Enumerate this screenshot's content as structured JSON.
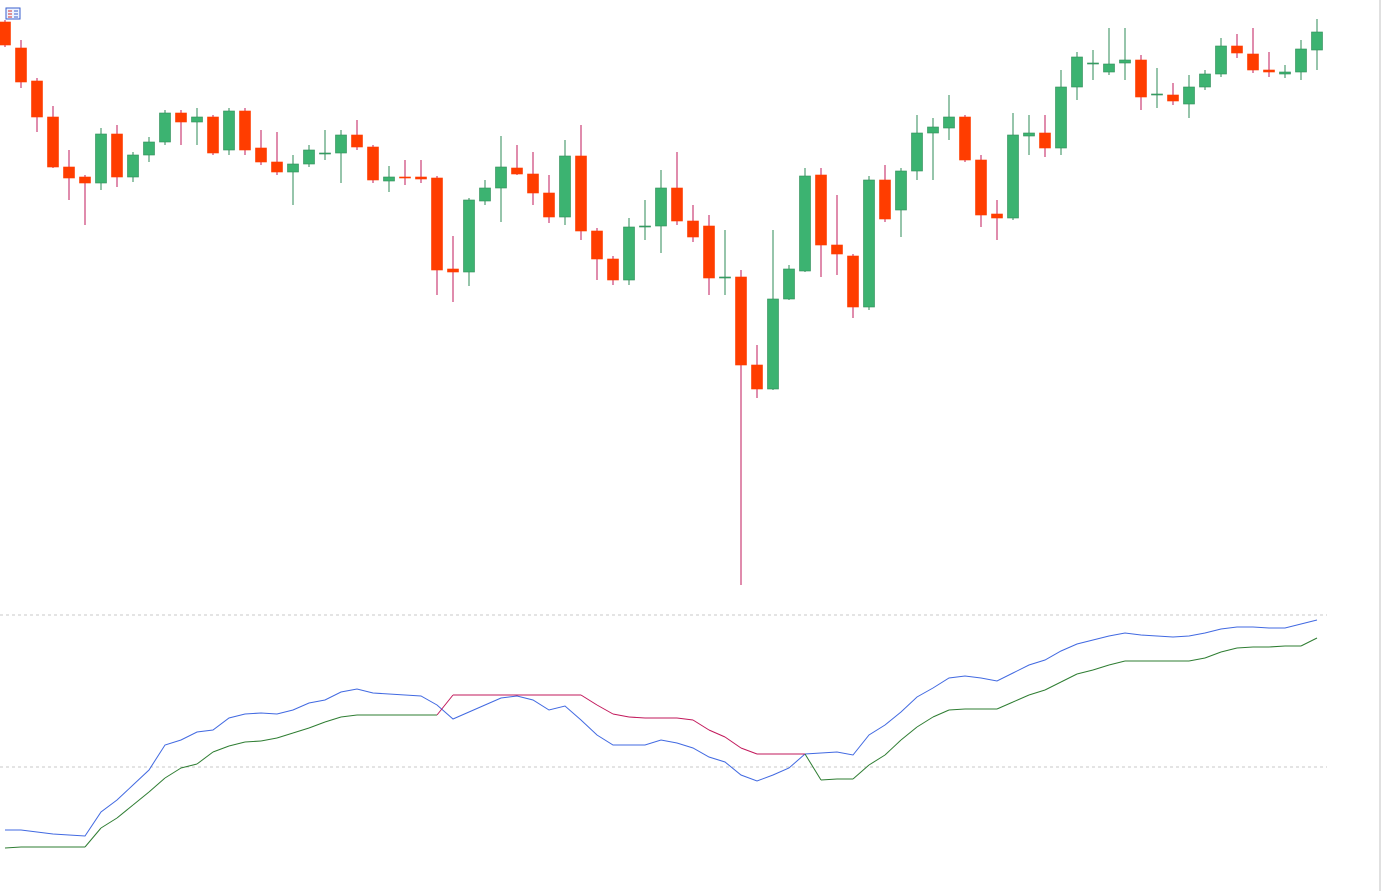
{
  "chart_data": [
    {
      "type": "candlestick",
      "ylim": [
        0,
        600
      ],
      "up_color": "#3cb371",
      "up_wick": "#2e8b57",
      "down_color": "#ff3d00",
      "down_wick": "#c2185b",
      "open": [
        578,
        552,
        519,
        483,
        433,
        423,
        417,
        466,
        423,
        445,
        458,
        487,
        478,
        483,
        450,
        489,
        452,
        438,
        428,
        436,
        446,
        447,
        465,
        453,
        419,
        423,
        423,
        422,
        331,
        328,
        399,
        412,
        432,
        426,
        407,
        383,
        444,
        369,
        341,
        320,
        373,
        374,
        412,
        379,
        374,
        322,
        323,
        235,
        211,
        301,
        329,
        425,
        355,
        344,
        293,
        420,
        390,
        429,
        467,
        472,
        483,
        440,
        386,
        382,
        464,
        467,
        452,
        513,
        536,
        528,
        537,
        540,
        505,
        505,
        496,
        513,
        526,
        554,
        546,
        530,
        526,
        528,
        550
      ],
      "high": [
        580,
        560,
        522,
        494,
        450,
        425,
        472,
        475,
        448,
        463,
        490,
        490,
        492,
        485,
        492,
        492,
        470,
        468,
        445,
        455,
        470,
        470,
        480,
        455,
        434,
        440,
        440,
        424,
        364,
        402,
        420,
        464,
        455,
        448,
        425,
        460,
        475,
        372,
        344,
        382,
        400,
        430,
        448,
        395,
        385,
        370,
        330,
        255,
        370,
        335,
        432,
        432,
        405,
        346,
        424,
        435,
        432,
        485,
        482,
        505,
        485,
        445,
        400,
        487,
        485,
        485,
        530,
        548,
        550,
        572,
        572,
        545,
        532,
        517,
        525,
        530,
        562,
        566,
        572,
        548,
        535,
        560,
        581
      ],
      "low": [
        553,
        512,
        468,
        432,
        400,
        375,
        410,
        413,
        418,
        438,
        455,
        455,
        455,
        445,
        445,
        445,
        435,
        425,
        395,
        433,
        440,
        417,
        450,
        417,
        408,
        415,
        417,
        305,
        298,
        314,
        395,
        378,
        425,
        395,
        377,
        375,
        360,
        320,
        315,
        315,
        360,
        347,
        375,
        358,
        305,
        305,
        15,
        202,
        210,
        300,
        328,
        323,
        325,
        282,
        290,
        378,
        363,
        420,
        420,
        460,
        438,
        373,
        360,
        380,
        445,
        443,
        445,
        500,
        520,
        525,
        520,
        490,
        492,
        495,
        482,
        510,
        523,
        542,
        527,
        523,
        522,
        520,
        530
      ],
      "close": [
        555,
        518,
        483,
        433,
        422,
        417,
        466,
        423,
        445,
        458,
        487,
        478,
        483,
        447,
        489,
        450,
        438,
        428,
        436,
        450,
        447,
        465,
        453,
        420,
        423,
        422,
        421,
        330,
        328,
        400,
        412,
        433,
        426,
        407,
        383,
        444,
        369,
        341,
        320,
        373,
        374,
        412,
        379,
        363,
        322,
        323,
        235,
        211,
        301,
        331,
        424,
        355,
        346,
        293,
        420,
        381,
        429,
        467,
        473,
        483,
        440,
        385,
        382,
        465,
        467,
        452,
        513,
        543,
        537,
        536,
        540,
        503,
        506,
        499,
        513,
        526,
        554,
        547,
        530,
        528,
        528,
        551,
        568
      ]
    },
    {
      "type": "line",
      "ylim": [
        0,
        290
      ],
      "hlines": [
        275,
        123
      ],
      "hline_color": "#c8c8c8",
      "series": [
        {
          "color": "#4169e1",
          "values": [
            60,
            60,
            58,
            56,
            55,
            54,
            78,
            90,
            105,
            120,
            145,
            150,
            158,
            160,
            172,
            176,
            177,
            176,
            180,
            187,
            190,
            198,
            201,
            197,
            196,
            195,
            194,
            185,
            171,
            178,
            185,
            192,
            194,
            190,
            180,
            184,
            170,
            155,
            145,
            145,
            145,
            150,
            147,
            142,
            133,
            128,
            115,
            109,
            115,
            122,
            136,
            137,
            138,
            135,
            155,
            165,
            178,
            193,
            202,
            212,
            214,
            212,
            209,
            217,
            225,
            230,
            239,
            246,
            250,
            254,
            257,
            255,
            254,
            253,
            254,
            257,
            261,
            263,
            263,
            262,
            262,
            266,
            270
          ]
        },
        {
          "color": "#2e7d32",
          "above_color": "#c2185b",
          "values": [
            42,
            43,
            43,
            43,
            43,
            43,
            62,
            72,
            85,
            98,
            112,
            122,
            126,
            138,
            144,
            148,
            149,
            152,
            157,
            162,
            168,
            173,
            175,
            175,
            175,
            175,
            175,
            175,
            195,
            195,
            195,
            195,
            195,
            195,
            195,
            195,
            195,
            185,
            176,
            173,
            172,
            172,
            172,
            170,
            160,
            153,
            142,
            136,
            136,
            136,
            136,
            110,
            111,
            111,
            125,
            135,
            150,
            163,
            173,
            180,
            181,
            181,
            181,
            188,
            195,
            200,
            208,
            216,
            220,
            225,
            229,
            229,
            229,
            229,
            229,
            232,
            238,
            242,
            243,
            243,
            244,
            244,
            252
          ]
        }
      ]
    }
  ]
}
